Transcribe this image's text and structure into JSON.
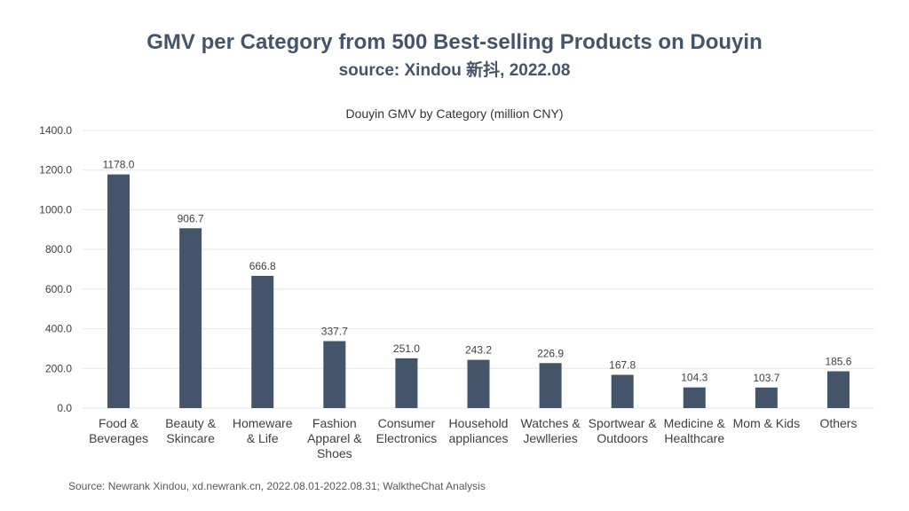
{
  "header": {
    "title": "GMV per Category from 500 Best-selling Products on Douyin",
    "subtitle": "source: Xindou 新抖, 2022.08"
  },
  "footer": {
    "source": "Source: Newrank Xindou, xd.newrank.cn, 2022.08.01-2022.08.31; WalktheChat Analysis"
  },
  "colors": {
    "bar": "#44546a"
  },
  "chart_data": {
    "type": "bar",
    "title": "Douyin GMV by Category (million CNY)",
    "xlabel": "",
    "ylabel": "",
    "ylim": [
      0,
      1400
    ],
    "yticks": [
      "0.0",
      "200.0",
      "400.0",
      "600.0",
      "800.0",
      "1000.0",
      "1200.0",
      "1400.0"
    ],
    "grid": true,
    "categories": [
      [
        "Food &",
        "Beverages"
      ],
      [
        "Beauty &",
        "Skincare"
      ],
      [
        "Homeware",
        "& Life"
      ],
      [
        "Fashion",
        "Apparel &",
        "Shoes"
      ],
      [
        "Consumer",
        "Electronics"
      ],
      [
        "Household",
        "appliances"
      ],
      [
        "Watches &",
        "Jewlleries"
      ],
      [
        "Sportwear &",
        "Outdoors"
      ],
      [
        "Medicine &",
        "Healthcare"
      ],
      [
        "Mom & Kids"
      ],
      [
        "Others"
      ]
    ],
    "values": [
      1178.0,
      906.7,
      666.8,
      337.7,
      251.0,
      243.2,
      226.9,
      167.8,
      104.3,
      103.7,
      185.6
    ],
    "value_labels": [
      "1178.0",
      "906.7",
      "666.8",
      "337.7",
      "251.0",
      "243.2",
      "226.9",
      "167.8",
      "104.3",
      "103.7",
      "185.6"
    ]
  }
}
